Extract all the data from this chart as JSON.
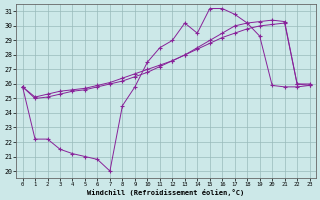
{
  "bg_color": "#cce8e8",
  "line_color": "#882299",
  "grid_color": "#99bbbb",
  "xlim": [
    -0.5,
    23.5
  ],
  "ylim": [
    19.5,
    31.5
  ],
  "yticks": [
    20,
    21,
    22,
    23,
    24,
    25,
    26,
    27,
    28,
    29,
    30,
    31
  ],
  "xticks": [
    0,
    1,
    2,
    3,
    4,
    5,
    6,
    7,
    8,
    9,
    10,
    11,
    12,
    13,
    14,
    15,
    16,
    17,
    18,
    19,
    20,
    21,
    22,
    23
  ],
  "xlabel": "Windchill (Refroidissement éolien,°C)",
  "series": [
    [
      25.8,
      25.1,
      25.3,
      25.5,
      25.6,
      25.7,
      25.9,
      26.1,
      26.4,
      26.7,
      27.0,
      27.3,
      27.6,
      28.0,
      28.4,
      28.8,
      29.2,
      29.5,
      29.8,
      30.0,
      30.1,
      30.2,
      26.0,
      26.0
    ],
    [
      25.8,
      25.0,
      25.1,
      25.3,
      25.5,
      25.6,
      25.8,
      26.0,
      26.2,
      26.5,
      26.8,
      27.2,
      27.6,
      28.0,
      28.5,
      29.0,
      29.5,
      30.0,
      30.2,
      30.3,
      30.4,
      30.3,
      26.0,
      25.9
    ],
    [
      25.8,
      22.2,
      22.2,
      21.5,
      21.2,
      21.0,
      20.8,
      20.0,
      24.5,
      25.8,
      27.5,
      28.5,
      29.0,
      30.2,
      29.5,
      31.2,
      31.2,
      30.8,
      30.2,
      29.3,
      25.9,
      25.8,
      25.8,
      25.9
    ]
  ]
}
